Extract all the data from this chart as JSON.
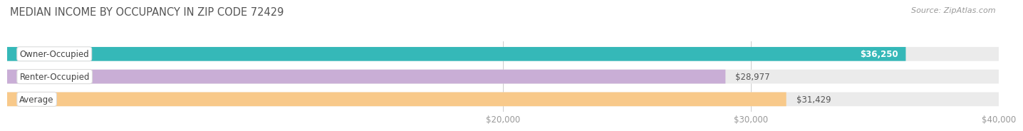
{
  "title": "MEDIAN INCOME BY OCCUPANCY IN ZIP CODE 72429",
  "source": "Source: ZipAtlas.com",
  "categories": [
    "Owner-Occupied",
    "Renter-Occupied",
    "Average"
  ],
  "values": [
    36250,
    28977,
    31429
  ],
  "bar_colors": [
    "#35b8b8",
    "#c9aed6",
    "#f8c98a"
  ],
  "bar_bg_colors": [
    "#ebebeb",
    "#ebebeb",
    "#ebebeb"
  ],
  "value_labels": [
    "$36,250",
    "$28,977",
    "$31,429"
  ],
  "label_inside": [
    true,
    false,
    false
  ],
  "xmin": 0,
  "xmax": 40000,
  "xticks": [
    20000,
    30000,
    40000
  ],
  "xtick_labels": [
    "$20,000",
    "$30,000",
    "$40,000"
  ],
  "bg_color": "#ffffff",
  "bar_height": 0.62,
  "bar_gap": 0.18,
  "title_fontsize": 10.5,
  "source_fontsize": 8,
  "value_fontsize": 8.5,
  "cat_fontsize": 8.5,
  "tick_fontsize": 8.5,
  "grid_color": "#cccccc",
  "tick_color": "#999999"
}
